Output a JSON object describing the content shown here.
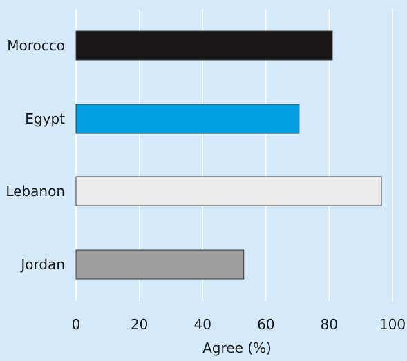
{
  "chart_data": {
    "type": "bar",
    "orientation": "horizontal",
    "categories": [
      "Morocco",
      "Egypt",
      "Lebanon",
      "Jordan"
    ],
    "values": [
      81,
      70.5,
      96.5,
      53
    ],
    "bar_colors": [
      "#1a1718",
      "#00a0e3",
      "#ebebeb",
      "#9c9c9c"
    ],
    "xlabel": "Agree (%)",
    "xlim": [
      0,
      100
    ],
    "xticks": [
      0,
      20,
      40,
      60,
      80,
      100
    ],
    "grid": true,
    "background_color": "#d4eaf8",
    "gridline_color": "#ffffff"
  }
}
